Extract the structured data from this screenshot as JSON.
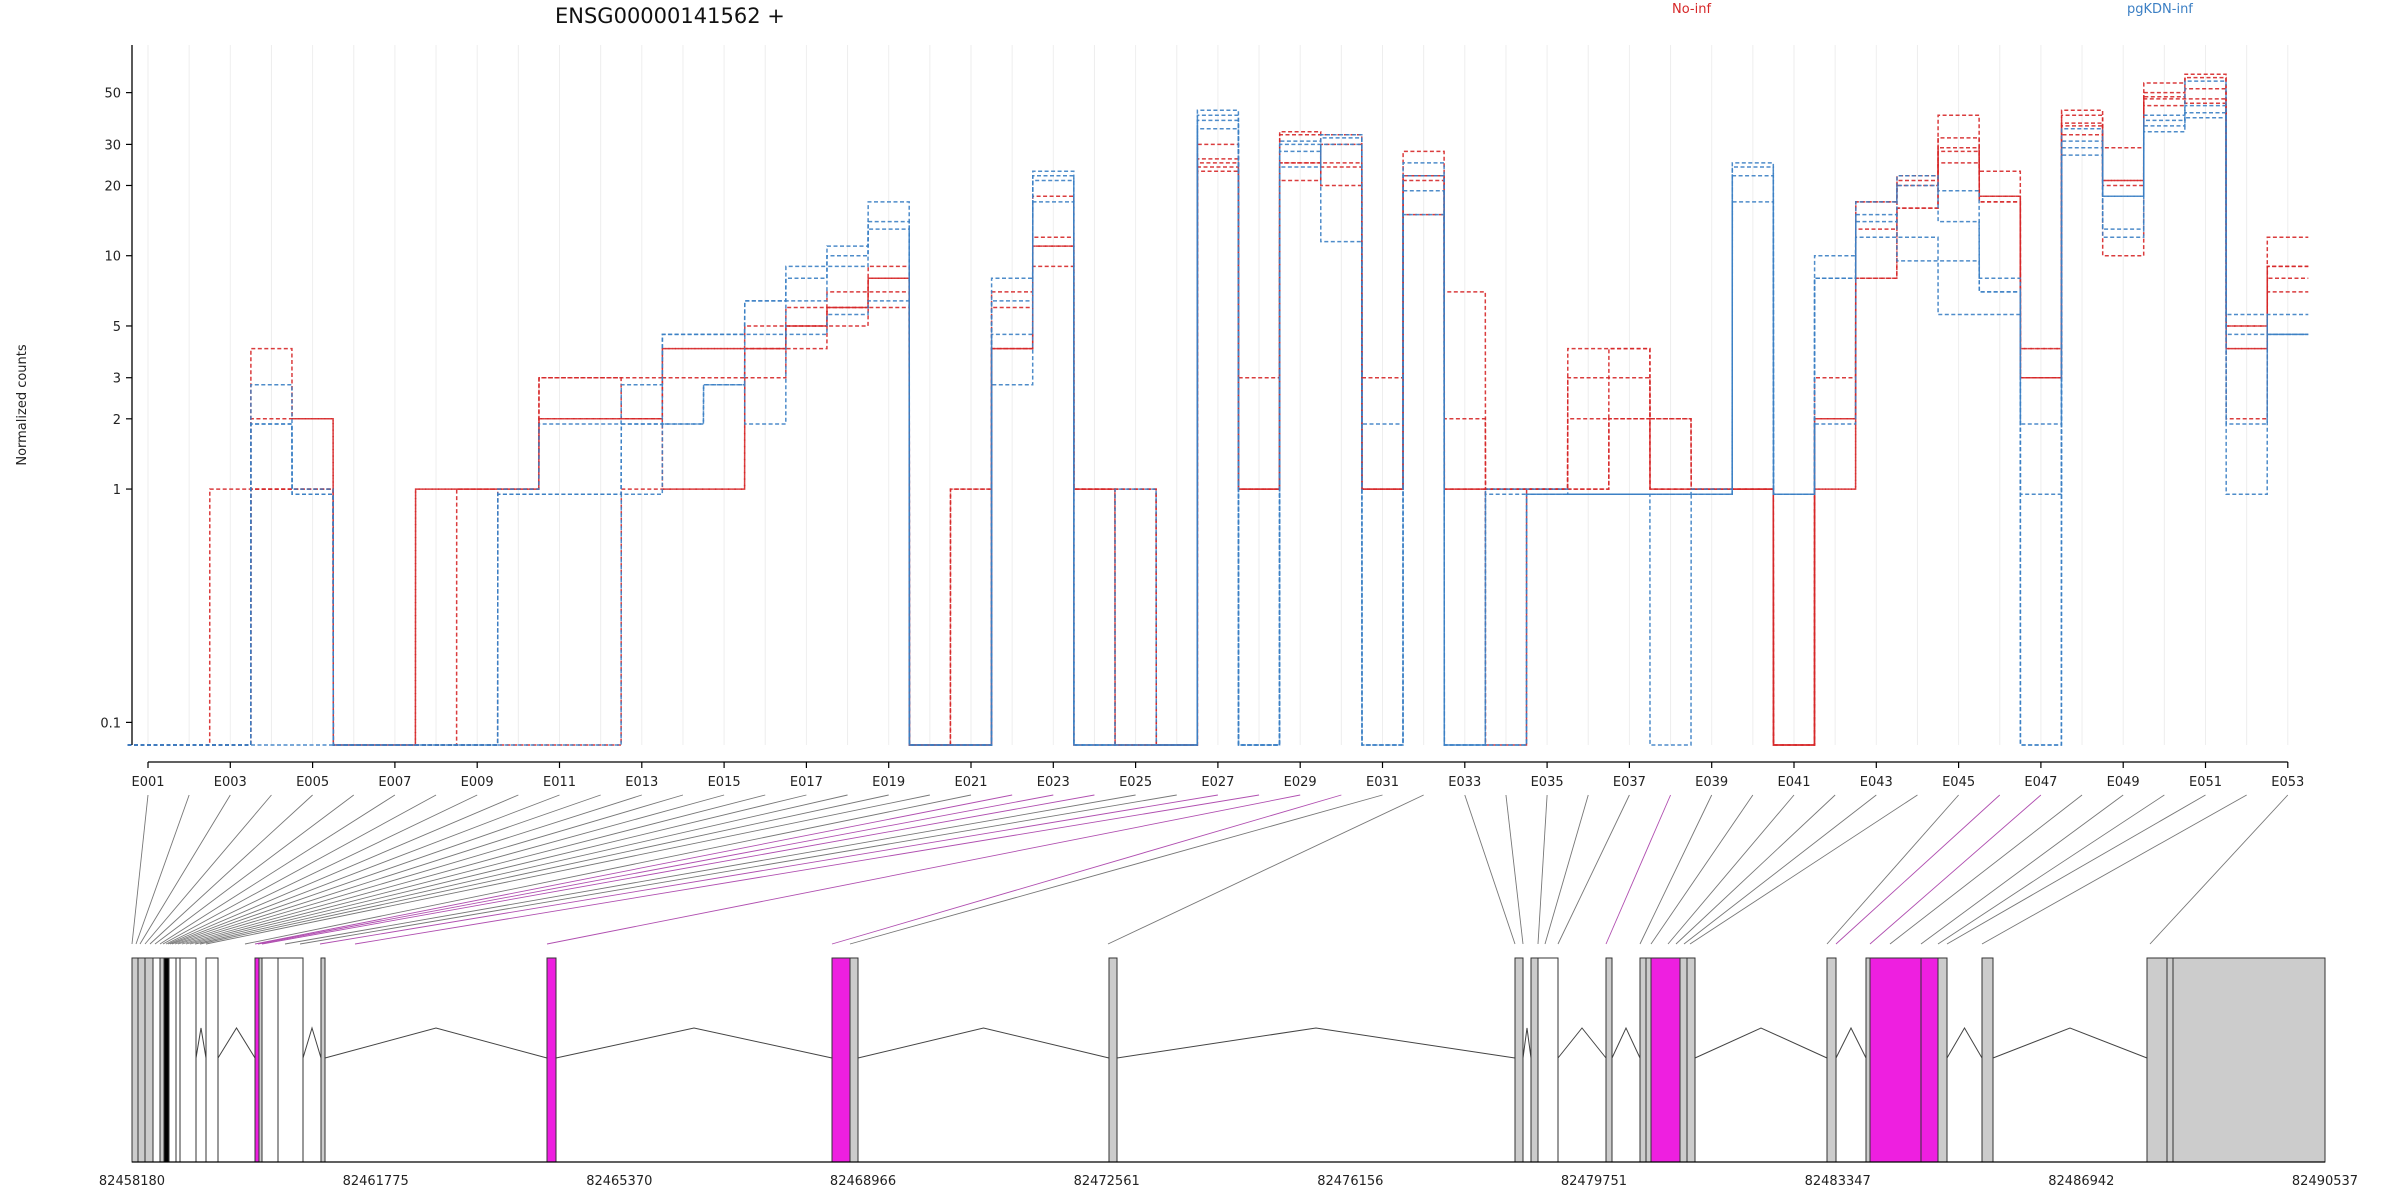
{
  "chart_data": {
    "type": "line",
    "title": "ENSG00000141562 +",
    "ylabel": "Normalized counts",
    "xlabel": "",
    "yscale": "log",
    "ylim": [
      0.08,
      80
    ],
    "yticks": [
      "0.1",
      "1",
      "2",
      "3",
      "5",
      "10",
      "20",
      "30",
      "50"
    ],
    "grid": "vertical-light",
    "legend_placement": "top-right",
    "categories": [
      "E001",
      "E002",
      "E003",
      "E004",
      "E005",
      "E006",
      "E007",
      "E008",
      "E009",
      "E010",
      "E011",
      "E012",
      "E013",
      "E014",
      "E015",
      "E016",
      "E017",
      "E018",
      "E019",
      "E020",
      "E021",
      "E022",
      "E023",
      "E024",
      "E025",
      "E026",
      "E027",
      "E028",
      "E029",
      "E030",
      "E031",
      "E032",
      "E033",
      "E034",
      "E035",
      "E036",
      "E037",
      "E038",
      "E039",
      "E040",
      "E041",
      "E042",
      "E043",
      "E044",
      "E045",
      "E046",
      "E047",
      "E048",
      "E049",
      "E050",
      "E051",
      "E052",
      "E053"
    ],
    "tick_labels": [
      "E001",
      "E003",
      "E005",
      "E007",
      "E009",
      "E011",
      "E013",
      "E015",
      "E017",
      "E019",
      "E021",
      "E023",
      "E025",
      "E027",
      "E029",
      "E031",
      "E033",
      "E035",
      "E037",
      "E039",
      "E041",
      "E043",
      "E045",
      "E047",
      "E049",
      "E051",
      "E053"
    ],
    "legend": [
      {
        "name": "No-inf",
        "color": "#d62728"
      },
      {
        "name": "pgKDN-inf",
        "color": "#3b7fc4"
      }
    ],
    "series": [
      {
        "group": "No-inf",
        "values": [
          0.08,
          0.08,
          1,
          4,
          2,
          0.08,
          0.08,
          1,
          1,
          1,
          3,
          3,
          3,
          4,
          4,
          4,
          5,
          6,
          8,
          0.08,
          1,
          4,
          9,
          1,
          1,
          0.08,
          25,
          3,
          25,
          25,
          3,
          22,
          7,
          1,
          1,
          2,
          4,
          2,
          1,
          1,
          0.08,
          3,
          17,
          20,
          28,
          23,
          4,
          37,
          20,
          50,
          60,
          5,
          12
        ]
      },
      {
        "group": "No-inf",
        "values": [
          0.08,
          0.08,
          0.08,
          2,
          2,
          0.08,
          0.08,
          1,
          1,
          1,
          2,
          2,
          2,
          3,
          3,
          4,
          5,
          6,
          7,
          0.08,
          1,
          6,
          11,
          1,
          0.08,
          0.08,
          30,
          1,
          33,
          33,
          1,
          21,
          1,
          1,
          1,
          4,
          4,
          1,
          1,
          1,
          0.08,
          2,
          8,
          21,
          32,
          17,
          3,
          42,
          29,
          44,
          52,
          2,
          9
        ]
      },
      {
        "group": "No-inf",
        "values": [
          0.08,
          0.08,
          0.08,
          1,
          1,
          0.08,
          0.08,
          0.08,
          1,
          1,
          3,
          3,
          2,
          4,
          4,
          5,
          6,
          7,
          9,
          0.08,
          0.08,
          7,
          12,
          1,
          1,
          0.08,
          24,
          1,
          21,
          24,
          1,
          15,
          2,
          1,
          1,
          3,
          3,
          2,
          1,
          1,
          0.08,
          1,
          17,
          22,
          40,
          18,
          4,
          36,
          10,
          55,
          58,
          4,
          8
        ]
      },
      {
        "group": "No-inf",
        "values": [
          0.08,
          0.08,
          0.08,
          1,
          1,
          0.08,
          0.08,
          0.08,
          0.08,
          1,
          2,
          2,
          2,
          1,
          1,
          4,
          5,
          6,
          8,
          0.08,
          0.08,
          4,
          18,
          0.08,
          0.08,
          0.08,
          26,
          1,
          34,
          20,
          1,
          22,
          1,
          0.08,
          1,
          1,
          2,
          1,
          1,
          1,
          0.08,
          2,
          13,
          16,
          29,
          18,
          3,
          40,
          21,
          48,
          45,
          5,
          9
        ]
      },
      {
        "group": "No-inf",
        "values": [
          0.08,
          0.08,
          0.08,
          1,
          1,
          0.08,
          0.08,
          0.08,
          0.08,
          0.08,
          0.08,
          0.08,
          1,
          1,
          1,
          3,
          4,
          5,
          6,
          0.08,
          0.08,
          4,
          11,
          1,
          0.08,
          0.08,
          23,
          1,
          25,
          30,
          1,
          28,
          1,
          1,
          1,
          1,
          2,
          1,
          1,
          1,
          0.08,
          1,
          8,
          16,
          25,
          17,
          3,
          33,
          21,
          47,
          47,
          4,
          7
        ]
      },
      {
        "group": "pgKDN-inf",
        "values": [
          0.08,
          0.08,
          0.08,
          2.8,
          1,
          0.08,
          0.08,
          0.08,
          0.08,
          1,
          1.9,
          1.9,
          2.8,
          4.6,
          4.6,
          6.4,
          9,
          11,
          17,
          0.08,
          0.08,
          8,
          23,
          0.08,
          1,
          0.08,
          40,
          0.08,
          24,
          30,
          1.9,
          25,
          0.08,
          1,
          1,
          0.95,
          0.95,
          0.95,
          1,
          25,
          0.95,
          1.9,
          17,
          22,
          19,
          8,
          1.9,
          35,
          18,
          40,
          56,
          5.6,
          4.6
        ]
      },
      {
        "group": "pgKDN-inf",
        "values": [
          0.08,
          0.08,
          0.08,
          1.9,
          0.95,
          0.08,
          0.08,
          0.08,
          0.08,
          0.95,
          0.95,
          0.95,
          1.9,
          1.9,
          2.8,
          4.6,
          6.4,
          9,
          14,
          0.08,
          0.08,
          6.4,
          21,
          0.08,
          0.08,
          0.08,
          35,
          0.08,
          31,
          33,
          0.08,
          19,
          0.08,
          0.95,
          0.95,
          0.95,
          0.95,
          0.95,
          0.95,
          24,
          0.95,
          10,
          14,
          20,
          14,
          7,
          0.95,
          31,
          18,
          38,
          44,
          4.6,
          5.6
        ]
      },
      {
        "group": "pgKDN-inf",
        "values": [
          0.08,
          0.08,
          0.08,
          1.9,
          0.95,
          0.08,
          0.08,
          0.08,
          0.08,
          0.95,
          0.95,
          0.95,
          1.9,
          4.6,
          4.6,
          6.4,
          8,
          10,
          13,
          0.08,
          0.08,
          4.6,
          17,
          0.08,
          0.08,
          0.08,
          42,
          0.08,
          30,
          11.5,
          0.08,
          15,
          0.08,
          0.08,
          0.95,
          0.95,
          0.95,
          0.08,
          0.95,
          17,
          0.95,
          8,
          12,
          9.5,
          9.5,
          7,
          0.08,
          29,
          13,
          36,
          41,
          1.9,
          4.6
        ]
      },
      {
        "group": "pgKDN-inf",
        "values": [
          0.08,
          0.08,
          0.08,
          0.08,
          0.08,
          0.08,
          0.08,
          0.08,
          0.08,
          0.08,
          0.08,
          0.08,
          0.95,
          1.9,
          2.8,
          1.9,
          4.6,
          5.6,
          6.4,
          0.08,
          0.08,
          2.8,
          22,
          0.08,
          0.08,
          0.08,
          38,
          0.08,
          28,
          32,
          0.08,
          22,
          0.08,
          0.08,
          0.95,
          0.95,
          0.95,
          0.95,
          0.95,
          22,
          0.95,
          8,
          15,
          12,
          5.6,
          5.6,
          0.08,
          27,
          12,
          34,
          39,
          0.95,
          4.6
        ]
      }
    ],
    "genome_axis": {
      "ticks": [
        "82458180",
        "82461775",
        "82465370",
        "82468966",
        "82472561",
        "82476156",
        "82479751",
        "82483347",
        "82486942",
        "82490537"
      ]
    }
  }
}
